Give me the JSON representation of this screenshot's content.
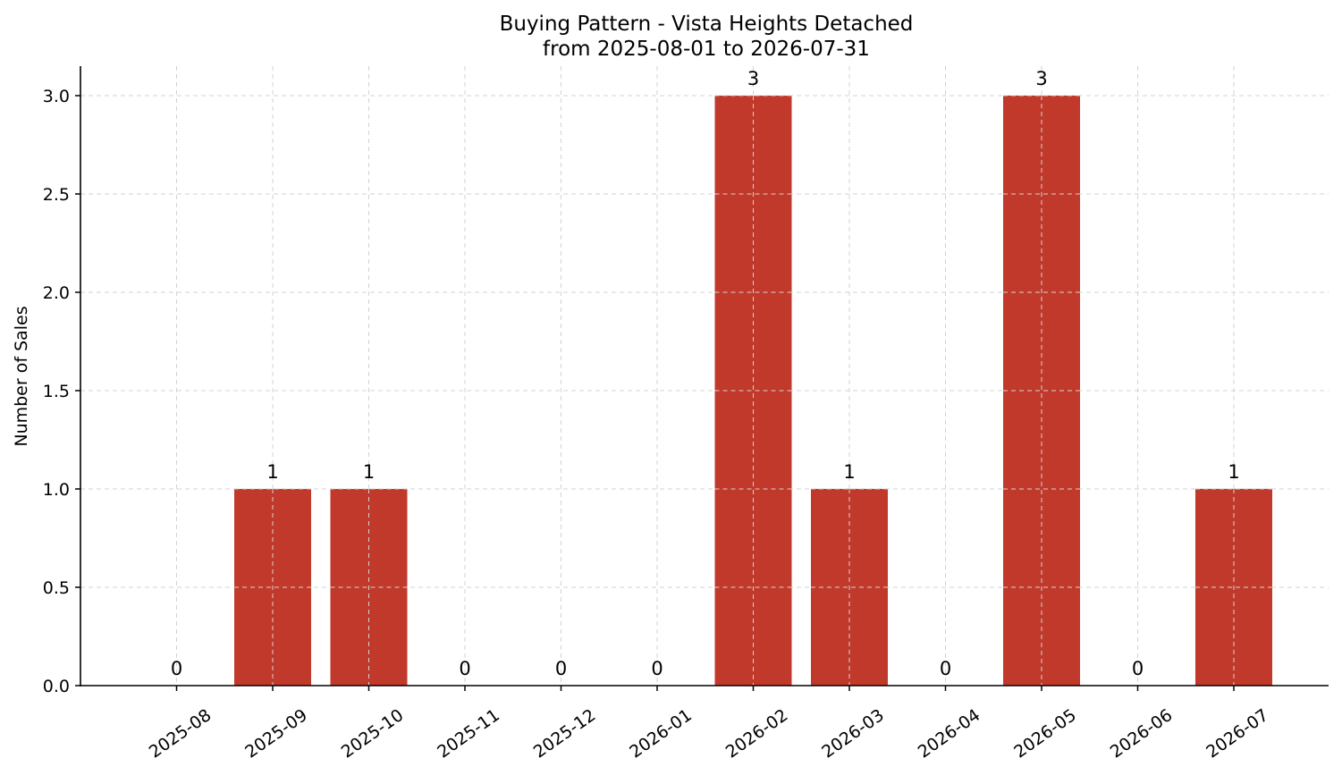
{
  "chart_data": {
    "type": "bar",
    "title": "Buying Pattern - Vista Heights Detached",
    "subtitle": "from 2025-08-01 to 2026-07-31",
    "xlabel": "",
    "ylabel": "Number of Sales",
    "categories": [
      "2025-08",
      "2025-09",
      "2025-10",
      "2025-11",
      "2025-12",
      "2026-01",
      "2026-02",
      "2026-03",
      "2026-04",
      "2026-05",
      "2026-06",
      "2026-07"
    ],
    "values": [
      0,
      1,
      1,
      0,
      0,
      0,
      3,
      1,
      0,
      3,
      0,
      1
    ],
    "data_labels": [
      "0",
      "1",
      "1",
      "0",
      "0",
      "0",
      "3",
      "1",
      "0",
      "3",
      "0",
      "1"
    ],
    "ylim": [
      0,
      3.15
    ],
    "yticks": [
      0.0,
      0.5,
      1.0,
      1.5,
      2.0,
      2.5,
      3.0
    ],
    "ytick_labels": [
      "0.0",
      "0.5",
      "1.0",
      "1.5",
      "2.0",
      "2.5",
      "3.0"
    ],
    "grid": true,
    "bar_color": "#c0392b",
    "grid_color": "#d3d3d3"
  }
}
